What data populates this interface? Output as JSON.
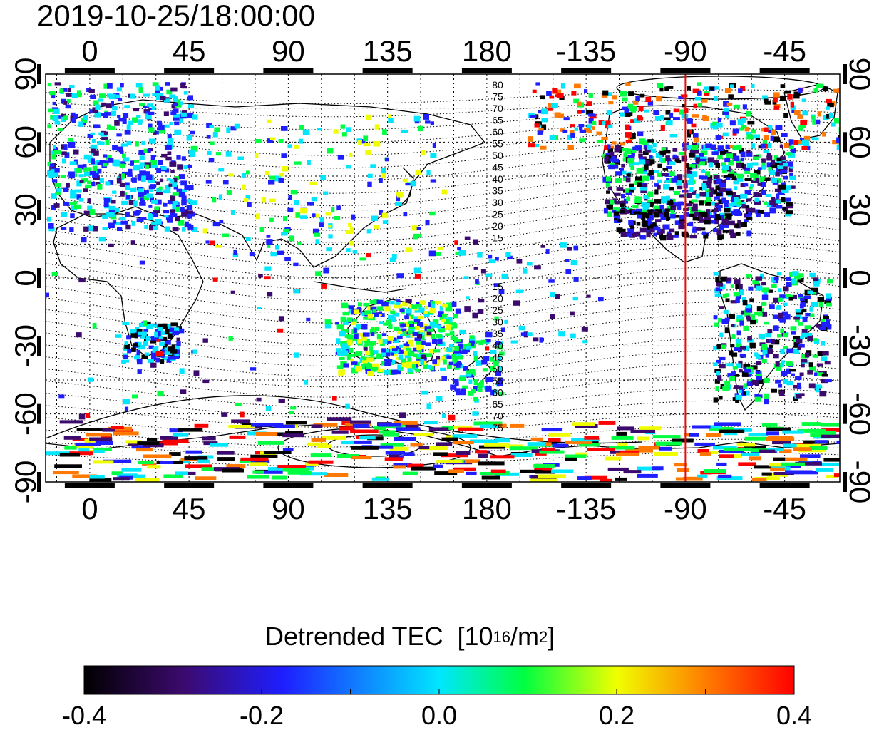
{
  "timestamp": "2019-10-25/18:00:00",
  "map": {
    "lon_ticks": [
      "0",
      "45",
      "90",
      "135",
      "180",
      "-135",
      "-90",
      "-45"
    ],
    "lon_tick_values": [
      0,
      45,
      90,
      135,
      180,
      225,
      270,
      315
    ],
    "lat_ticks": [
      "90",
      "60",
      "30",
      "0",
      "-30",
      "-60",
      "-90"
    ],
    "lat_tick_values": [
      90,
      60,
      30,
      0,
      -30,
      -60,
      -90
    ],
    "lon_range": [
      -20,
      340
    ],
    "lat_range": [
      -90,
      90
    ],
    "marker_longitude": -90,
    "marker_color": "#e01010",
    "contour_labels_north": [
      "80",
      "75",
      "70",
      "65",
      "60",
      "55",
      "50",
      "45",
      "40",
      "35",
      "30",
      "25",
      "20",
      "15"
    ],
    "contour_labels_south": [
      "15",
      "20",
      "25",
      "30",
      "35",
      "40",
      "45",
      "50",
      "55",
      "60",
      "65",
      "70",
      "75"
    ]
  },
  "colorbar": {
    "title": "Detrended TEC",
    "unit_base": "[10",
    "unit_exp": "16",
    "unit_mid": "/m",
    "unit_exp2": "2",
    "unit_end": "]",
    "tick_labels": [
      "-0.4",
      "-0.2",
      "0.0",
      "0.2",
      "0.4"
    ],
    "tick_values": [
      -0.4,
      -0.2,
      0.0,
      0.2,
      0.4
    ],
    "range": [
      -0.4,
      0.4
    ],
    "colors": [
      "#000000",
      "#3c0a6e",
      "#1e1eff",
      "#00e6ff",
      "#00ff40",
      "#f0ff00",
      "#ff7800",
      "#ff0000"
    ]
  }
}
